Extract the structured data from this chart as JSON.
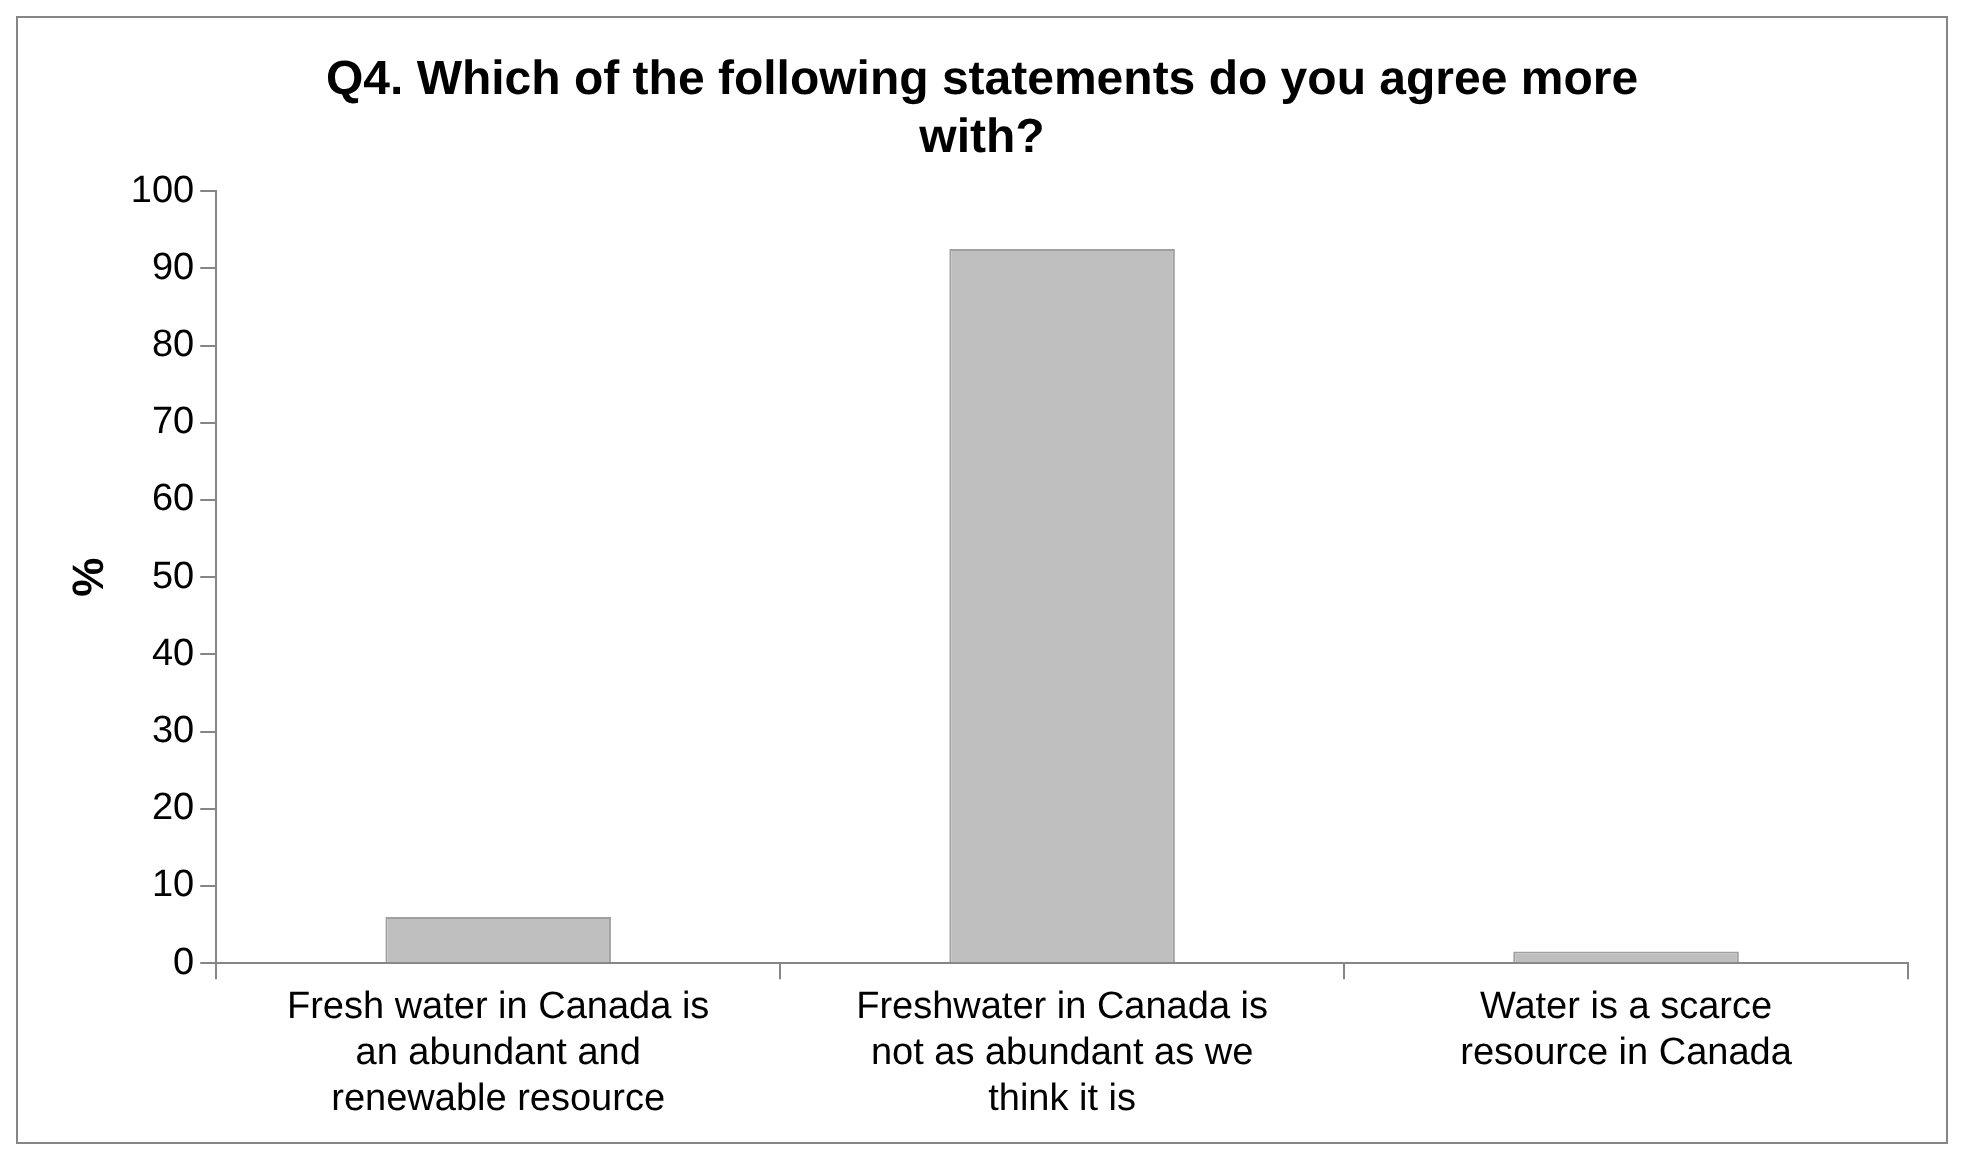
{
  "chart_data": {
    "type": "bar",
    "title": "Q4. Which of the following statements do you agree more with?",
    "ylabel": "%",
    "categories": [
      "Fresh water in Canada is an abundant and renewable resource",
      "Freshwater in Canada is not as abundant as we think it is",
      "Water is a scarce resource in Canada"
    ],
    "values": [
      6,
      92.5,
      1.5
    ],
    "color": "#bfbfbf",
    "ylim": [
      0,
      100
    ],
    "yticks": [
      0,
      10,
      20,
      30,
      40,
      50,
      60,
      70,
      80,
      90,
      100
    ],
    "grid": false,
    "legend": false
  }
}
